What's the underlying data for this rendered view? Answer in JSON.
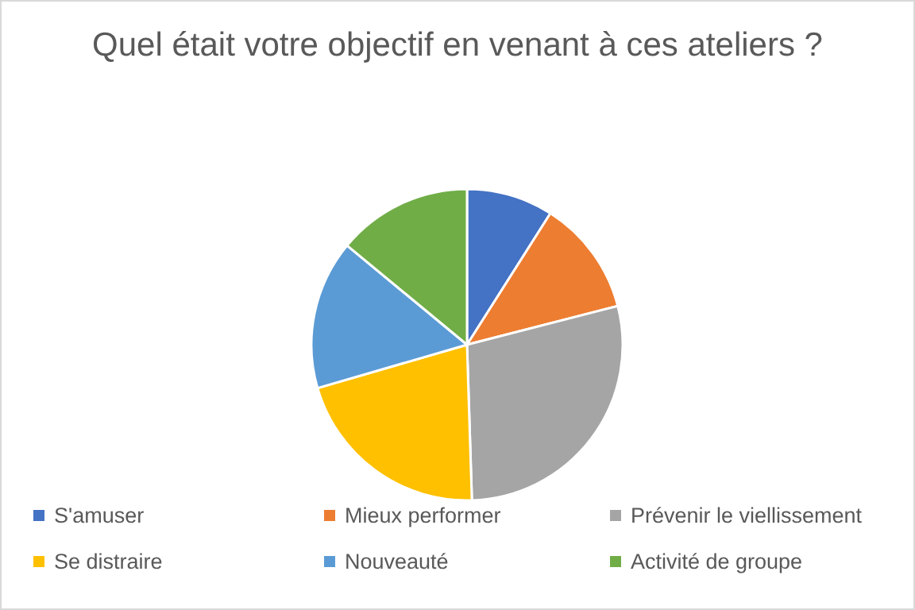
{
  "chart_data": {
    "type": "pie",
    "title": "Quel était votre objectif en venant à ces ateliers ?",
    "categories": [
      "S'amuser",
      "Mieux performer",
      "Prévenir le viellissement",
      "Se distraire",
      "Nouveauté",
      "Activité de groupe"
    ],
    "values": [
      9,
      12,
      28.5,
      21,
      15.5,
      14
    ],
    "colors": [
      "#4472c4",
      "#ed7d31",
      "#a5a5a5",
      "#ffc000",
      "#5b9bd5",
      "#70ad47"
    ],
    "legend": "bottom"
  }
}
